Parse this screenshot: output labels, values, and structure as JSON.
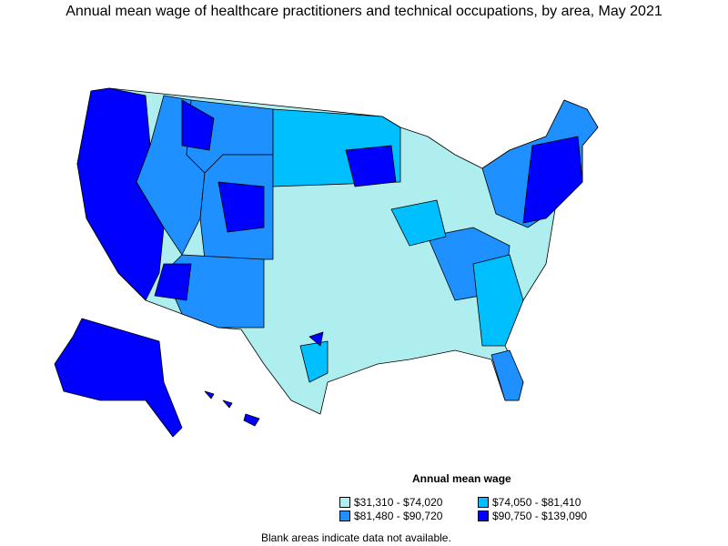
{
  "title": "Annual mean wage of healthcare practitioners and technical occupations, by area, May 2021",
  "legend": {
    "title": "Annual mean wage",
    "items": [
      {
        "label": "$31,310 - $74,020",
        "color": "#afeeee"
      },
      {
        "label": "$74,050 - $81,410",
        "color": "#00bfff"
      },
      {
        "label": "$81,480 - $90,720",
        "color": "#1e90ff"
      },
      {
        "label": "$90,750 - $139,090",
        "color": "#0000ff"
      }
    ]
  },
  "note": "Blank areas indicate data not available."
}
